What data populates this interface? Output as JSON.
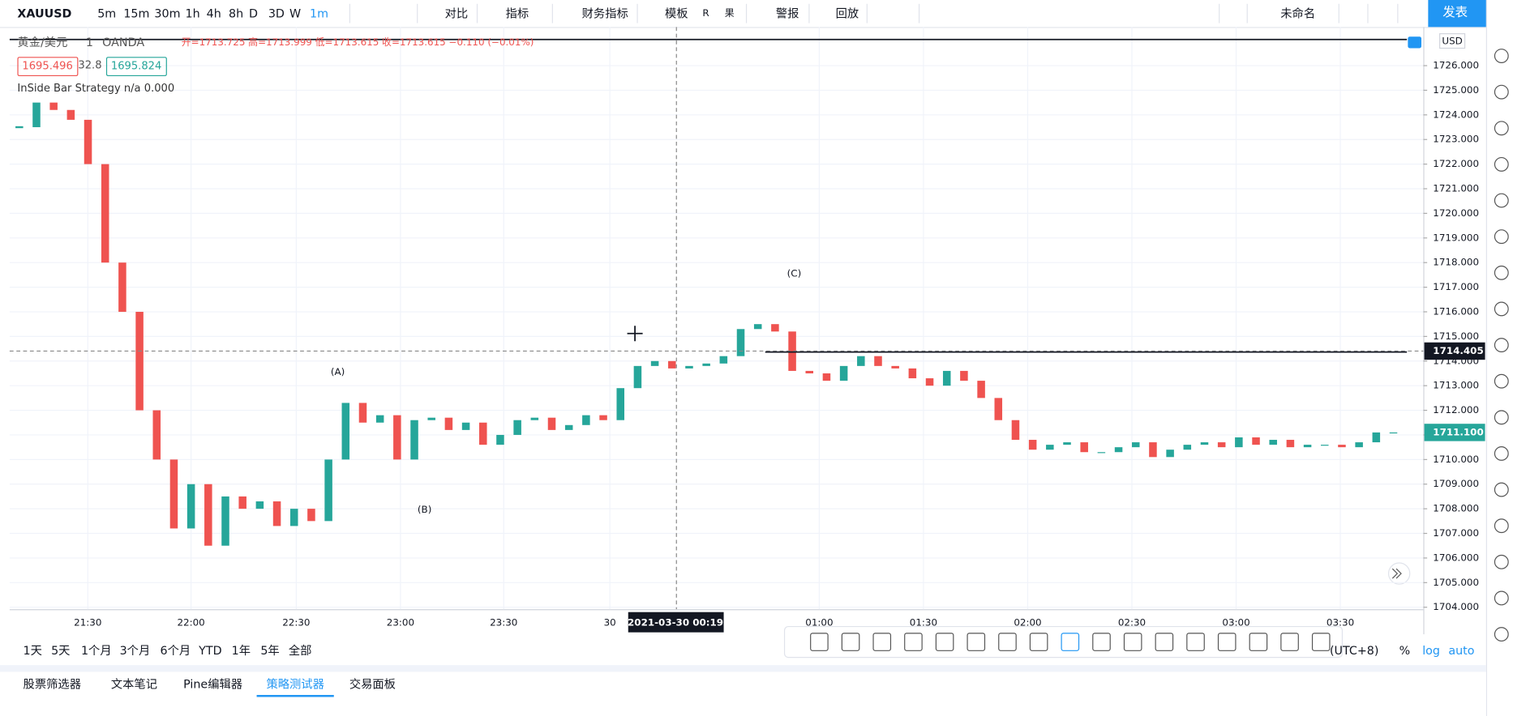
{
  "toolbar": {
    "symbol": "XAUUSD",
    "intervals": [
      "5m",
      "15m",
      "30m",
      "1h",
      "4h",
      "8h",
      "D",
      "3D",
      "W",
      "1m"
    ],
    "compare": "对比",
    "indicators": "指标",
    "financials": "财务指标",
    "templates": "模板",
    "r": "R",
    "guo": "果",
    "alerts": "警报",
    "replay": "回放",
    "layout_name": "未命名",
    "publish": "发表"
  },
  "legend": {
    "name": "黄金/美元",
    "interval": "1",
    "exchange": "OANDA",
    "ohlc": "开=1713.725 高=1713.999 低=1713.615 收=1713.615 −0.110 (−0.01%)",
    "bid": "1695.496",
    "spread": "32.8",
    "ask": "1695.824",
    "strategy": "InSide Bar Strategy  n/a  0.000"
  },
  "chart_data": {
    "type": "candlestick",
    "currency": "USD",
    "prices": [
      1723.5,
      1724.5,
      1724.2,
      1723.8,
      1722,
      1718,
      1716,
      1712,
      1710,
      1707.2,
      1709,
      1706.5,
      1708.5,
      1708,
      1708.3,
      1707.3,
      1708,
      1707.5,
      1710,
      1712.3,
      1711.5,
      1711.8,
      1710,
      1711.6,
      1711.7,
      1711.2,
      1711.5,
      1710.6,
      1711,
      1711.6,
      1711.7,
      1711.2,
      1711.4,
      1711.8,
      1711.6,
      1712.9,
      1713.8,
      1714,
      1713.7,
      1713.8,
      1713.9,
      1714.2,
      1715.3,
      1715.5,
      1715.2,
      1713.6,
      1713.5,
      1713.2,
      1713.8,
      1714.2,
      1713.8,
      1713.7,
      1713.3,
      1713,
      1713.6,
      1713.2,
      1712.5,
      1711.6,
      1710.8,
      1710.4,
      1710.6,
      1710.7,
      1710.3,
      1710.3,
      1710.5,
      1710.7,
      1710.1,
      1710.4,
      1710.6,
      1710.7,
      1710.5,
      1710.9,
      1710.6,
      1710.8,
      1710.5,
      1710.6,
      1710.6,
      1710.5,
      1710.7,
      1711.1,
      1711.1
    ],
    "ylim": [
      1703.92,
      1727.57
    ],
    "yticks": [
      {
        "value": 1704,
        "label": "1704.000"
      },
      {
        "value": 1705,
        "label": "1705.000"
      },
      {
        "value": 1706,
        "label": "1706.000"
      },
      {
        "value": 1707,
        "label": "1707.000"
      },
      {
        "value": 1708,
        "label": "1708.000"
      },
      {
        "value": 1709,
        "label": "1709.000"
      },
      {
        "value": 1710,
        "label": "1710.000"
      },
      {
        "value": 1711,
        "label": "1711.000"
      },
      {
        "value": 1712,
        "label": "1712.000"
      },
      {
        "value": 1713,
        "label": "1713.000"
      },
      {
        "value": 1714,
        "label": "1714.000"
      },
      {
        "value": 1715,
        "label": "1715.000"
      },
      {
        "value": 1716,
        "label": "1716.000"
      },
      {
        "value": 1717,
        "label": "1717.000"
      },
      {
        "value": 1718,
        "label": "1718.000"
      },
      {
        "value": 1719,
        "label": "1719.000"
      },
      {
        "value": 1720,
        "label": "1720.000"
      },
      {
        "value": 1721,
        "label": "1721.000"
      },
      {
        "value": 1722,
        "label": "1722.000"
      },
      {
        "value": 1723,
        "label": "1723.000"
      },
      {
        "value": 1724,
        "label": "1724.000"
      },
      {
        "value": 1725,
        "label": "1725.000"
      },
      {
        "value": 1726,
        "label": "1726.000"
      }
    ],
    "price_labels": [
      {
        "value": 1714.405,
        "label": "1714.405"
      },
      {
        "value": 1711.1,
        "label": "1711.100"
      }
    ],
    "annotations": [
      "(A)",
      "(B)",
      "(C)"
    ],
    "time_labels": [
      "21:30",
      "22:00",
      "22:30",
      "23:00",
      "23:30",
      "30",
      "01:00",
      "01:30",
      "02:00",
      "02:30",
      "03:00",
      "03:30"
    ],
    "crosshair": "2021-03-30   00:19"
  },
  "ranges": [
    "1天",
    "5天",
    "1个月",
    "3个月",
    "6个月",
    "YTD",
    "1年",
    "5年",
    "全部"
  ],
  "axis_options": [
    "(UTC+8)",
    "%",
    "log",
    "auto"
  ],
  "tabs": [
    "股票筛选器",
    "文本笔记",
    "Pine编辑器",
    "策略测试器",
    "交易面板"
  ]
}
